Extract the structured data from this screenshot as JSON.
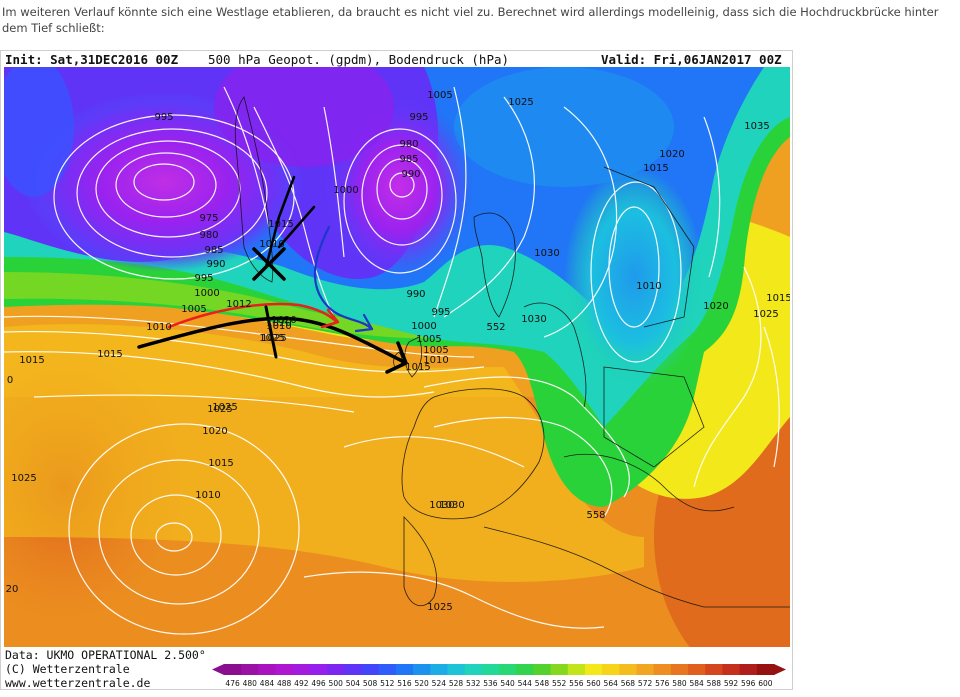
{
  "post": {
    "text": "Im weiteren Verlauf könnte sich eine Westlage etablieren, da braucht es nicht viel zu. Berechnet wird allerdings modelleinig, dass sich die Hochdruckbrücke hinter dem Tief schließt:"
  },
  "map": {
    "header_init": "Init: Sat,31DEC2016 00Z",
    "header_title": "500 hPa Geopot. (gpdm), Bodendruck (hPa)",
    "header_valid": "Valid: Fri,06JAN2017 00Z",
    "footer_data": "Data: UKMO OPERATIONAL 2.500°",
    "footer_copyright": "(C) Wetterzentrale",
    "footer_url": "www.wetterzentrale.de",
    "isobar_labels": [
      {
        "text": "995"
      },
      {
        "text": "975"
      },
      {
        "text": "980"
      },
      {
        "text": "985"
      },
      {
        "text": "990"
      },
      {
        "text": "995"
      },
      {
        "text": "1000"
      },
      {
        "text": "1005"
      },
      {
        "text": "1012"
      },
      {
        "text": "1010"
      },
      {
        "text": "1015"
      },
      {
        "text": "1015"
      },
      {
        "text": "1010"
      },
      {
        "text": "1000"
      },
      {
        "text": "1005"
      },
      {
        "text": "995"
      },
      {
        "text": "990"
      },
      {
        "text": "980"
      },
      {
        "text": "985"
      },
      {
        "text": "990"
      },
      {
        "text": "995"
      },
      {
        "text": "1000"
      },
      {
        "text": "1005"
      },
      {
        "text": "1010"
      },
      {
        "text": "1015"
      },
      {
        "text": "1020"
      },
      {
        "text": "1025"
      },
      {
        "text": "1025"
      },
      {
        "text": "1030"
      },
      {
        "text": "1030"
      },
      {
        "text": "1030"
      },
      {
        "text": "1025"
      },
      {
        "text": "1020"
      },
      {
        "text": "1015"
      },
      {
        "text": "1010"
      },
      {
        "text": "1035"
      },
      {
        "text": "1020"
      },
      {
        "text": "1015"
      },
      {
        "text": "1025"
      },
      {
        "text": "1015"
      },
      {
        "text": "1025"
      },
      {
        "text": "1020"
      },
      {
        "text": "1015"
      },
      {
        "text": "1010"
      },
      {
        "text": "1025"
      },
      {
        "text": "1030"
      },
      {
        "text": "1025"
      },
      {
        "text": "552"
      },
      {
        "text": "558"
      },
      {
        "text": "1005"
      },
      {
        "text": "1010"
      },
      {
        "text": "1020"
      },
      {
        "text": "1025"
      },
      {
        "text": "0"
      },
      {
        "text": "20"
      }
    ],
    "colors": {
      "deep_low": "#a020f0",
      "low": "#3a52ff",
      "mid_low": "#1ec8c8",
      "green": "#2ad23a",
      "yellow": "#f3e81a",
      "orange": "#f0a020",
      "deep_orange": "#e46a1a",
      "isobar": "#ffffff",
      "front_black": "#000000",
      "front_red": "#e8201e",
      "front_blue": "#1b38c8"
    }
  },
  "colorbar": {
    "labels": [
      "476",
      "480",
      "484",
      "488",
      "492",
      "496",
      "500",
      "504",
      "508",
      "512",
      "516",
      "520",
      "524",
      "528",
      "532",
      "536",
      "540",
      "544",
      "548",
      "552",
      "556",
      "560",
      "564",
      "568",
      "572",
      "576",
      "580",
      "584",
      "588",
      "592",
      "596",
      "600"
    ],
    "colors": [
      "#8a0f8f",
      "#9a11a6",
      "#aa12bd",
      "#b016cf",
      "#a41be0",
      "#961feb",
      "#7c26f2",
      "#5f34f7",
      "#4444fb",
      "#2f5dfb",
      "#2076f6",
      "#1c92ef",
      "#1cade6",
      "#1dc3d6",
      "#1fd3bd",
      "#22d99a",
      "#27d874",
      "#33d44d",
      "#55d12e",
      "#86d81e",
      "#c2e41a",
      "#f3e81a",
      "#f7d31a",
      "#f5bc1e",
      "#f2a521",
      "#ee8d21",
      "#e87520",
      "#e05e1e",
      "#d4461d",
      "#c5301c",
      "#b01e1c",
      "#961212"
    ]
  }
}
